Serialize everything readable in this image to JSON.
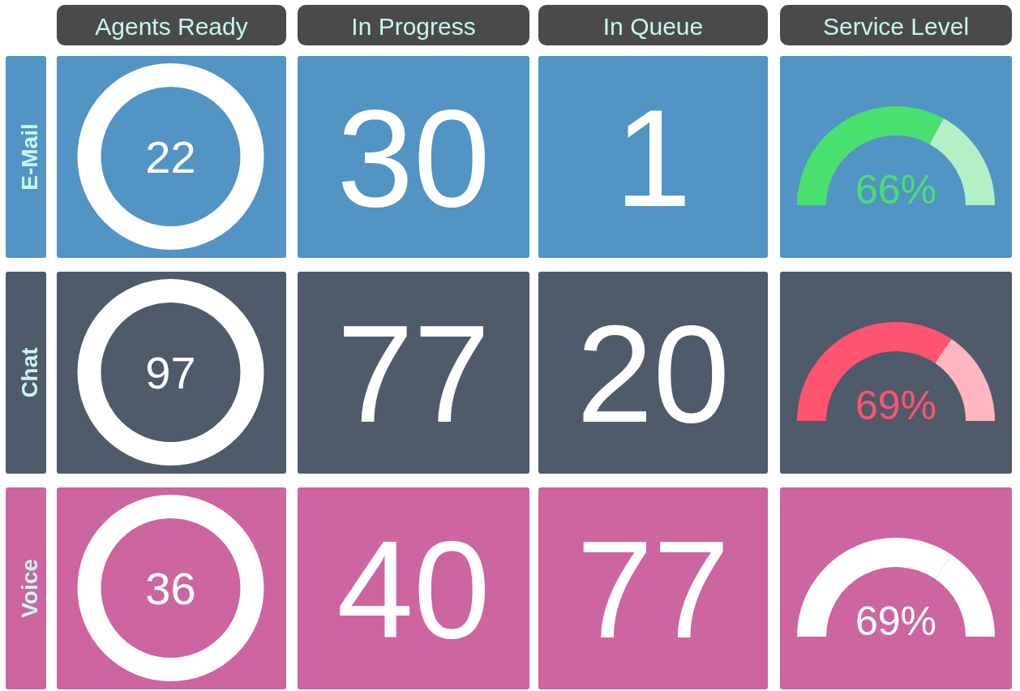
{
  "chart_data": [
    {
      "type": "other",
      "categories": [
        "Agents Ready",
        "In Progress",
        "In Queue"
      ],
      "data_labels": true,
      "series": [
        {
          "name": "E-Mail",
          "color": "#5294c4",
          "values": [
            22,
            30,
            1
          ]
        },
        {
          "name": "Chat",
          "color": "#4f5a6a",
          "values": [
            97,
            77,
            20
          ]
        },
        {
          "name": "Voice",
          "color": "#cc65a0",
          "values": [
            36,
            40,
            77
          ]
        }
      ]
    },
    {
      "type": "donut",
      "title": "Service Level",
      "categories": [
        null,
        null
      ],
      "values": [
        66,
        34
      ],
      "colors": [
        "#48e06e",
        "#b3f0c5"
      ],
      "value_labels": [
        "66%",
        null
      ]
    },
    {
      "type": "donut",
      "categories": [
        null,
        null
      ],
      "values": [
        69,
        31
      ],
      "colors": [
        "#ff5470",
        "#ffb6c1"
      ],
      "value_labels": [
        "69%",
        null
      ]
    },
    {
      "type": "donut",
      "categories": [
        null,
        null
      ],
      "values": [
        69,
        31
      ],
      "colors": [
        "#ffffff",
        "#ffffff"
      ],
      "value_labels": [
        "69%",
        null
      ]
    }
  ]
}
